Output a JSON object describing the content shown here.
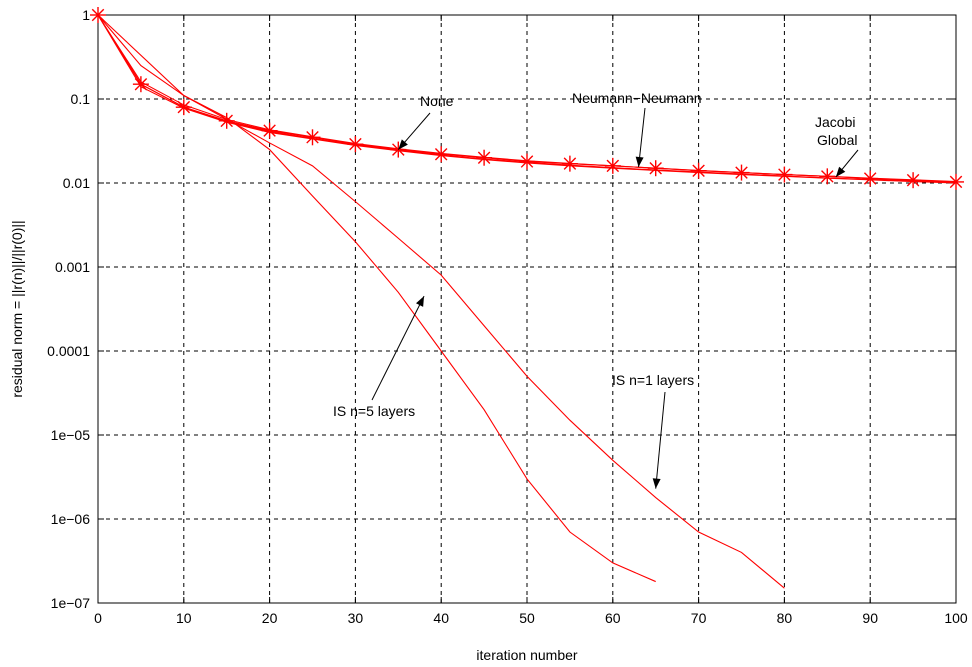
{
  "chart_data": {
    "type": "line",
    "title": "",
    "xlabel": "iteration number",
    "ylabel": "residual norm = ||r(n)||/||r(0)||",
    "xlim": [
      0,
      100
    ],
    "ylim": [
      1e-07,
      1
    ],
    "yscale": "log",
    "grid": true,
    "grid_style": "dashed",
    "line_color": "#ff0000",
    "x_ticks": [
      "0",
      "10",
      "20",
      "30",
      "40",
      "50",
      "60",
      "70",
      "80",
      "90",
      "100"
    ],
    "y_ticks": [
      "1",
      "0.1",
      "0.01",
      "0.001",
      "0.0001",
      "1e−05",
      "1e−06",
      "1e−07"
    ],
    "series": [
      {
        "name": "None",
        "marker": "asterisk",
        "x": [
          0,
          5,
          10,
          15,
          20,
          25,
          30,
          35,
          40,
          45,
          50,
          55,
          60,
          65,
          70,
          75,
          80,
          85,
          90,
          95,
          100
        ],
        "y": [
          1,
          0.15,
          0.08,
          0.055,
          0.042,
          0.035,
          0.029,
          0.025,
          0.022,
          0.02,
          0.018,
          0.017,
          0.016,
          0.015,
          0.014,
          0.0133,
          0.0126,
          0.012,
          0.0113,
          0.0108,
          0.0103
        ]
      },
      {
        "name": "Neumann−Neumann",
        "marker": "none",
        "x": [
          0,
          5,
          10,
          15,
          20,
          25,
          30,
          35,
          40,
          45,
          50,
          55,
          60,
          65,
          70,
          75,
          80,
          85,
          90,
          95,
          100
        ],
        "y": [
          1,
          0.16,
          0.085,
          0.057,
          0.043,
          0.0355,
          0.0295,
          0.0255,
          0.0225,
          0.0202,
          0.0184,
          0.0171,
          0.016,
          0.015,
          0.0141,
          0.0133,
          0.0126,
          0.012,
          0.0114,
          0.0109,
          0.0104
        ]
      },
      {
        "name": "Jacobi",
        "marker": "none",
        "x": [
          0,
          5,
          10,
          15,
          20,
          25,
          30,
          35,
          40,
          45,
          50,
          55,
          60,
          65,
          70,
          75,
          80,
          85,
          90,
          95,
          100
        ],
        "y": [
          1,
          0.15,
          0.08,
          0.054,
          0.041,
          0.034,
          0.0285,
          0.0245,
          0.0215,
          0.0193,
          0.0176,
          0.0163,
          0.0152,
          0.0143,
          0.0135,
          0.0128,
          0.0121,
          0.0115,
          0.011,
          0.0106,
          0.0102
        ]
      },
      {
        "name": "Global",
        "marker": "none",
        "x": [
          0,
          5,
          10,
          15,
          20,
          25,
          30,
          35,
          40,
          45,
          50,
          55,
          60,
          65,
          70,
          75,
          80,
          85,
          90,
          95,
          100
        ],
        "y": [
          1,
          0.14,
          0.078,
          0.053,
          0.04,
          0.0335,
          0.028,
          0.0242,
          0.0212,
          0.019,
          0.0173,
          0.016,
          0.015,
          0.0141,
          0.0133,
          0.0126,
          0.012,
          0.0114,
          0.0109,
          0.0104,
          0.01
        ]
      },
      {
        "name": "IS n=5 layers",
        "marker": "none",
        "x": [
          0,
          5,
          10,
          15,
          20,
          25,
          30,
          35,
          40,
          45,
          50,
          55,
          60,
          65
        ],
        "y": [
          1,
          0.25,
          0.11,
          0.06,
          0.025,
          0.007,
          0.002,
          0.0005,
          0.0001,
          2e-05,
          3e-06,
          7e-07,
          3e-07,
          1.8e-07
        ]
      },
      {
        "name": "IS n=1 layers",
        "marker": "none",
        "x": [
          0,
          10,
          20,
          25,
          30,
          35,
          40,
          45,
          50,
          55,
          60,
          65,
          70,
          75,
          80
        ],
        "y": [
          1,
          0.11,
          0.03,
          0.016,
          0.006,
          0.0022,
          0.0008,
          0.0002,
          5e-05,
          1.5e-05,
          5e-06,
          1.8e-06,
          7e-07,
          4e-07,
          1.5e-07
        ]
      }
    ],
    "annotations": [
      {
        "text": "None",
        "arrow_to": [
          35,
          0.025
        ]
      },
      {
        "text": "Neumann−Neumann",
        "arrow_to": [
          63,
          0.0155
        ]
      },
      {
        "text": "Jacobi",
        "arrow_to": null
      },
      {
        "text": "Global",
        "arrow_to": [
          86,
          0.0118
        ]
      },
      {
        "text": "IS n=5 layers",
        "arrow_to": [
          38,
          0.00045
        ]
      },
      {
        "text": "IS n=1 layers",
        "arrow_to": [
          65,
          2.3e-06
        ]
      }
    ]
  }
}
